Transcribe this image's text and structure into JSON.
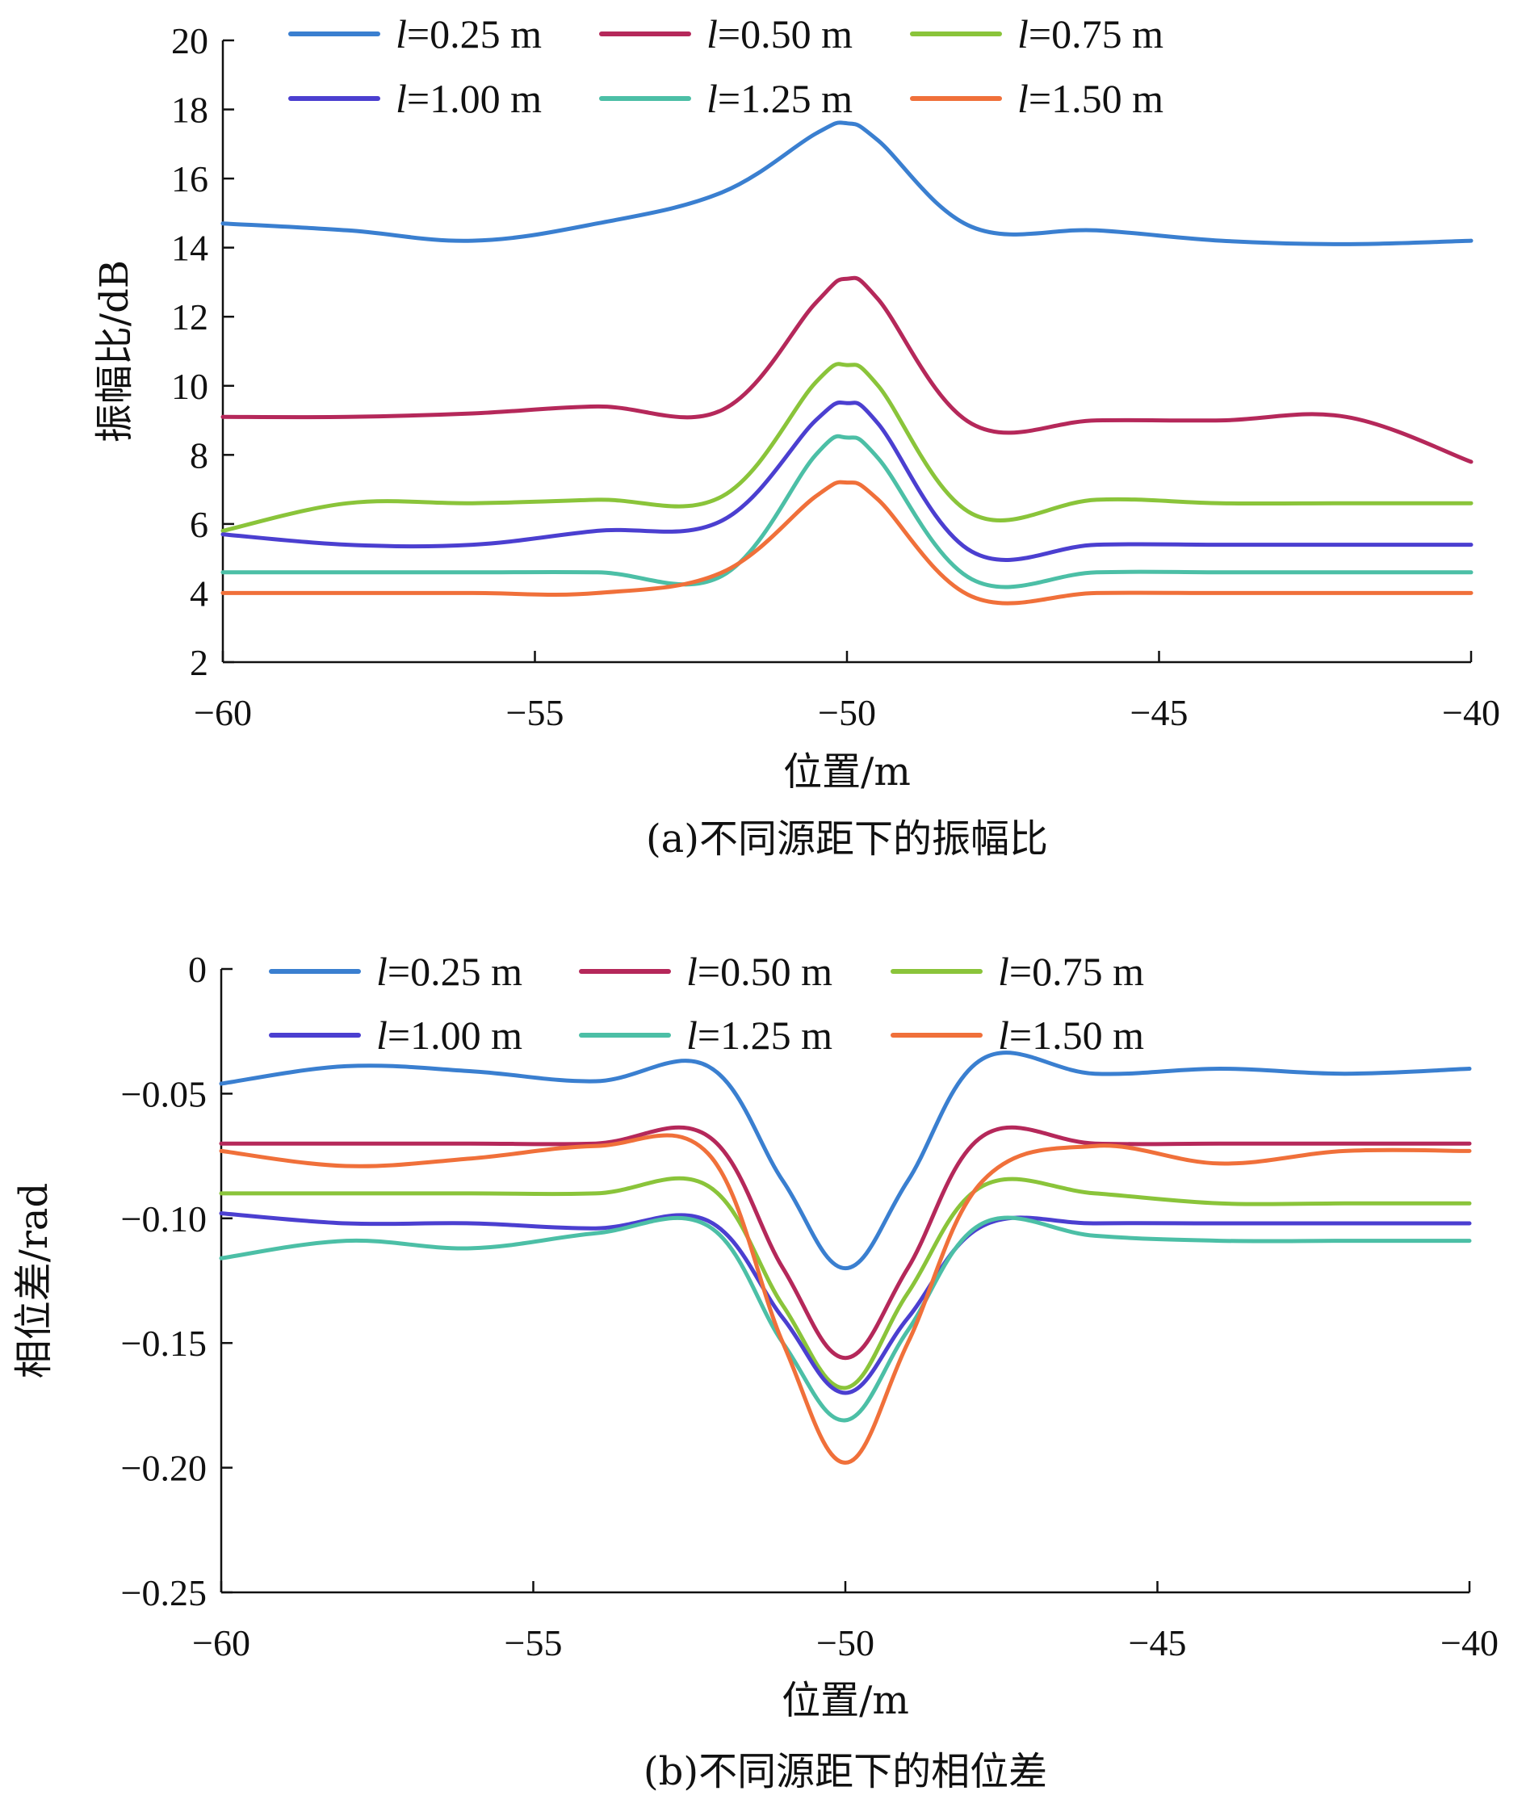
{
  "chart_data": [
    {
      "type": "line",
      "caption": "(a)不同源距下的振幅比",
      "xlabel": "位置/m",
      "ylabel": "振幅比/dB",
      "xlim": [
        -60,
        -40
      ],
      "ylim": [
        2,
        20
      ],
      "xticks": [
        -60,
        -55,
        -50,
        -45,
        -40
      ],
      "xtick_labels": [
        "−60",
        "−55",
        "−50",
        "−45",
        "−40"
      ],
      "yticks": [
        2,
        4,
        6,
        8,
        10,
        12,
        14,
        16,
        18,
        20
      ],
      "ytick_labels": [
        "2",
        "4",
        "6",
        "8",
        "10",
        "12",
        "14",
        "16",
        "18",
        "20"
      ],
      "legend_position": "top",
      "x": [
        -60,
        -58,
        -56,
        -54,
        -52,
        -50.5,
        -50,
        -49.5,
        -48,
        -46,
        -44,
        -42,
        -40
      ],
      "series": [
        {
          "name_prefix": "l",
          "name_suffix": "=0.25 m",
          "color": "#3a7fd0",
          "values": [
            14.7,
            14.5,
            14.2,
            14.7,
            15.6,
            17.3,
            17.6,
            17.1,
            14.6,
            14.5,
            14.2,
            14.1,
            14.2
          ]
        },
        {
          "name_prefix": "l",
          "name_suffix": "=0.50 m",
          "color": "#b5285a",
          "values": [
            9.1,
            9.1,
            9.2,
            9.4,
            9.3,
            12.4,
            13.1,
            12.5,
            8.9,
            9.0,
            9.0,
            9.1,
            7.8
          ]
        },
        {
          "name_prefix": "l",
          "name_suffix": "=0.75 m",
          "color": "#8ac43a",
          "values": [
            5.8,
            6.6,
            6.6,
            6.7,
            6.8,
            10.1,
            10.6,
            10.0,
            6.3,
            6.7,
            6.6,
            6.6,
            6.6
          ]
        },
        {
          "name_prefix": "l",
          "name_suffix": "=1.00 m",
          "color": "#4b3fd0",
          "values": [
            5.7,
            5.4,
            5.4,
            5.8,
            6.1,
            9.0,
            9.5,
            8.9,
            5.2,
            5.4,
            5.4,
            5.4,
            5.4
          ]
        },
        {
          "name_prefix": "l",
          "name_suffix": "=1.25 m",
          "color": "#4cbfa6",
          "values": [
            4.6,
            4.6,
            4.6,
            4.6,
            4.5,
            8.0,
            8.5,
            7.9,
            4.4,
            4.6,
            4.6,
            4.6,
            4.6
          ]
        },
        {
          "name_prefix": "l",
          "name_suffix": "=1.50 m",
          "color": "#f0703a",
          "values": [
            4.0,
            4.0,
            4.0,
            4.0,
            4.6,
            6.8,
            7.2,
            6.7,
            3.9,
            4.0,
            4.0,
            4.0,
            4.0
          ]
        }
      ]
    },
    {
      "type": "line",
      "caption": "(b)不同源距下的相位差",
      "xlabel": "位置/m",
      "ylabel": "相位差/rad",
      "xlim": [
        -60,
        -40
      ],
      "ylim": [
        -0.25,
        0
      ],
      "xticks": [
        -60,
        -55,
        -50,
        -45,
        -40
      ],
      "xtick_labels": [
        "−60",
        "−55",
        "−50",
        "−45",
        "−40"
      ],
      "yticks": [
        0,
        -0.05,
        -0.1,
        -0.15,
        -0.2,
        -0.25
      ],
      "ytick_labels": [
        "0",
        "−0.05",
        "−0.10",
        "−0.15",
        "−0.20",
        "−0.25"
      ],
      "legend_position": "top",
      "x": [
        -60,
        -58,
        -56,
        -54,
        -52.2,
        -51,
        -50,
        -49,
        -47.8,
        -46,
        -44,
        -42,
        -40
      ],
      "series": [
        {
          "name_prefix": "l",
          "name_suffix": "=0.25 m",
          "color": "#3a7fd0",
          "values": [
            -0.046,
            -0.039,
            -0.041,
            -0.045,
            -0.039,
            -0.085,
            -0.12,
            -0.085,
            -0.036,
            -0.042,
            -0.04,
            -0.042,
            -0.04
          ]
        },
        {
          "name_prefix": "l",
          "name_suffix": "=0.50 m",
          "color": "#b5285a",
          "values": [
            -0.07,
            -0.07,
            -0.07,
            -0.07,
            -0.067,
            -0.12,
            -0.156,
            -0.12,
            -0.067,
            -0.07,
            -0.07,
            -0.07,
            -0.07
          ]
        },
        {
          "name_prefix": "l",
          "name_suffix": "=0.75 m",
          "color": "#8ac43a",
          "values": [
            -0.09,
            -0.09,
            -0.09,
            -0.09,
            -0.087,
            -0.135,
            -0.168,
            -0.13,
            -0.087,
            -0.09,
            -0.094,
            -0.094,
            -0.094
          ]
        },
        {
          "name_prefix": "l",
          "name_suffix": "=1.00 m",
          "color": "#4b3fd0",
          "values": [
            -0.098,
            -0.102,
            -0.102,
            -0.104,
            -0.101,
            -0.14,
            -0.17,
            -0.14,
            -0.103,
            -0.102,
            -0.102,
            -0.102,
            -0.102
          ]
        },
        {
          "name_prefix": "l",
          "name_suffix": "=1.25 m",
          "color": "#4cbfa6",
          "values": [
            -0.116,
            -0.109,
            -0.112,
            -0.106,
            -0.103,
            -0.15,
            -0.181,
            -0.145,
            -0.102,
            -0.107,
            -0.109,
            -0.109,
            -0.109
          ]
        },
        {
          "name_prefix": "l",
          "name_suffix": "=1.50 m",
          "color": "#f0703a",
          "values": [
            -0.073,
            -0.079,
            -0.076,
            -0.071,
            -0.074,
            -0.15,
            -0.198,
            -0.15,
            -0.085,
            -0.071,
            -0.078,
            -0.073,
            -0.073
          ]
        }
      ]
    }
  ]
}
